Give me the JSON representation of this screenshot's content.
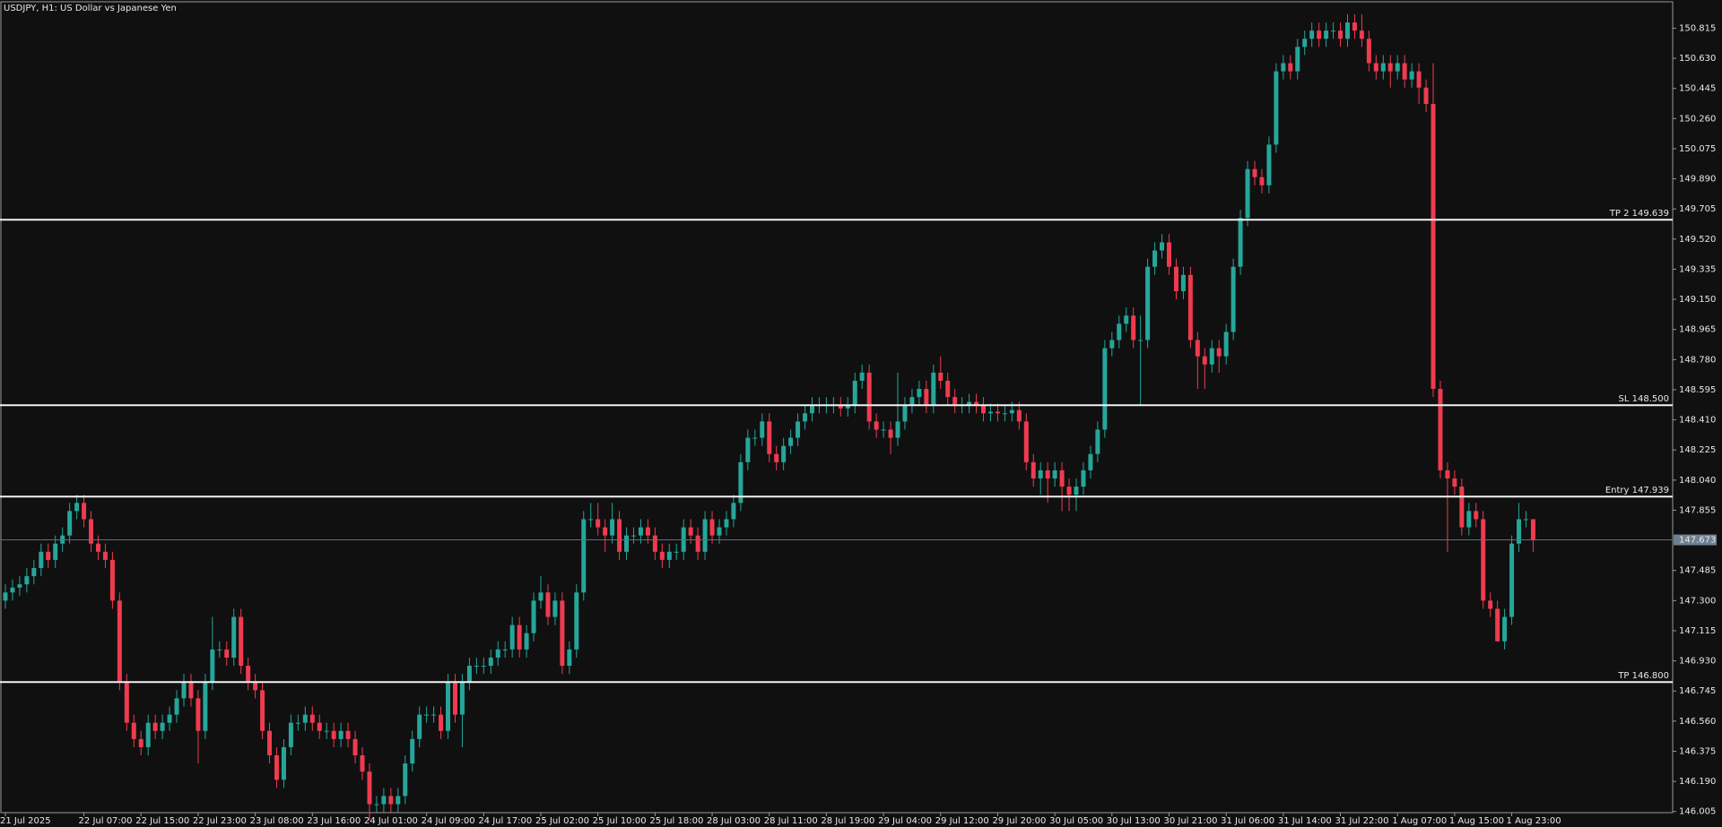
{
  "chart_data": {
    "type": "candlestick",
    "title": "USDJPY, H1:  US Dollar vs Japanese Yen",
    "up_color": "#26a69a",
    "down_color": "#ef3b4f",
    "categories": [
      "21 Jul 2025",
      null,
      null,
      null,
      null,
      null,
      null,
      null,
      null,
      null,
      null,
      "22 Jul 07:00",
      null,
      null,
      null,
      null,
      null,
      null,
      null,
      "22 Jul 15:00",
      null,
      null,
      null,
      null,
      null,
      null,
      null,
      "22 Jul 23:00",
      null,
      null,
      null,
      null,
      null,
      null,
      null,
      "23 Jul 08:00",
      null,
      null,
      null,
      null,
      null,
      null,
      null,
      "23 Jul 16:00",
      null,
      null,
      null,
      null,
      null,
      null,
      null,
      "24 Jul 01:00",
      null,
      null,
      null,
      null,
      null,
      null,
      null,
      "24 Jul 09:00",
      null,
      null,
      null,
      null,
      null,
      null,
      null,
      "24 Jul 17:00",
      null,
      null,
      null,
      null,
      null,
      null,
      null,
      "25 Jul 02:00",
      null,
      null,
      null,
      null,
      null,
      null,
      null,
      "25 Jul 10:00",
      null,
      null,
      null,
      null,
      null,
      null,
      null,
      "25 Jul 18:00",
      null,
      null,
      null,
      null,
      null,
      null,
      null,
      "28 Jul 03:00",
      null,
      null,
      null,
      null,
      null,
      null,
      null,
      "28 Jul 11:00",
      null,
      null,
      null,
      null,
      null,
      null,
      null,
      "28 Jul 19:00",
      null,
      null,
      null,
      null,
      null,
      null,
      null,
      "29 Jul 04:00",
      null,
      null,
      null,
      null,
      null,
      null,
      null,
      "29 Jul 12:00",
      null,
      null,
      null,
      null,
      null,
      null,
      null,
      "29 Jul 20:00",
      null,
      null,
      null,
      null,
      null,
      null,
      null,
      "30 Jul 05:00",
      null,
      null,
      null,
      null,
      null,
      null,
      null,
      "30 Jul 13:00",
      null,
      null,
      null,
      null,
      null,
      null,
      null,
      "30 Jul 21:00",
      null,
      null,
      null,
      null,
      null,
      null,
      null,
      "31 Jul 06:00",
      null,
      null,
      null,
      null,
      null,
      null,
      null,
      "31 Jul 14:00",
      null,
      null,
      null,
      null,
      null,
      null,
      null,
      "31 Jul 22:00",
      null,
      null,
      null,
      null,
      null,
      null,
      null,
      "1 Aug 07:00",
      null,
      null,
      null,
      null,
      null,
      null,
      null,
      "1 Aug 15:00",
      null,
      null,
      null,
      null,
      null,
      null,
      null,
      "1 Aug 23:00",
      null,
      null,
      null
    ],
    "open": [
      147.3,
      147.35,
      147.38,
      147.4,
      147.45,
      147.5,
      147.6,
      147.55,
      147.65,
      147.7,
      147.85,
      147.9,
      147.8,
      147.65,
      147.6,
      147.55,
      147.3,
      146.8,
      146.55,
      146.45,
      146.4,
      146.55,
      146.5,
      146.55,
      146.6,
      146.7,
      146.8,
      146.7,
      146.5,
      146.8,
      147.0,
      147.0,
      146.95,
      147.2,
      146.9,
      146.8,
      146.75,
      146.5,
      146.35,
      146.2,
      146.4,
      146.55,
      146.55,
      146.6,
      146.55,
      146.5,
      146.5,
      146.45,
      146.5,
      146.45,
      146.35,
      146.25,
      146.05,
      146.05,
      146.1,
      146.05,
      146.1,
      146.3,
      146.45,
      146.6,
      146.6,
      146.6,
      146.5,
      146.8,
      146.6,
      146.8,
      146.9,
      146.9,
      146.9,
      146.95,
      147.0,
      147.0,
      147.15,
      147.0,
      147.1,
      147.3,
      147.35,
      147.2,
      147.3,
      146.9,
      147.0,
      147.35,
      147.8,
      147.8,
      147.75,
      147.7,
      147.8,
      147.6,
      147.7,
      147.7,
      147.75,
      147.7,
      147.6,
      147.55,
      147.6,
      147.6,
      147.75,
      147.7,
      147.6,
      147.8,
      147.7,
      147.75,
      147.8,
      147.9,
      148.15,
      148.3,
      148.3,
      148.4,
      148.2,
      148.15,
      148.25,
      148.3,
      148.4,
      148.45,
      148.5,
      148.5,
      148.5,
      148.5,
      148.48,
      148.5,
      148.65,
      148.7,
      148.4,
      148.35,
      148.35,
      148.3,
      148.4,
      148.5,
      148.55,
      148.6,
      148.5,
      148.7,
      148.65,
      148.55,
      148.5,
      148.5,
      148.52,
      148.5,
      148.45,
      148.46,
      148.45,
      148.45,
      148.47,
      148.4,
      148.15,
      148.05,
      148.1,
      148.05,
      148.1,
      148.0,
      147.95,
      148.0,
      148.1,
      148.2,
      148.35,
      148.85,
      148.9,
      149.0,
      149.05,
      148.9,
      148.9,
      149.35,
      149.45,
      149.5,
      149.35,
      149.2,
      149.3,
      148.9,
      148.8,
      148.75,
      148.85,
      148.8,
      148.95,
      149.35,
      149.65,
      149.95,
      149.9,
      149.85,
      150.1,
      150.55,
      150.6,
      150.55,
      150.7,
      150.75,
      150.8,
      150.75,
      150.8,
      150.8,
      150.75,
      150.85,
      150.8,
      150.75,
      150.6,
      150.55,
      150.6,
      150.55,
      150.6,
      150.5,
      150.55,
      150.45,
      150.35,
      148.6,
      148.1,
      148.05,
      148.0,
      147.75,
      147.85,
      147.8,
      147.3,
      147.25,
      147.05,
      147.2,
      147.65,
      147.8,
      147.8
    ],
    "high": [
      147.4,
      147.43,
      147.45,
      147.5,
      147.55,
      147.65,
      147.65,
      147.7,
      147.75,
      147.9,
      147.95,
      147.95,
      147.85,
      147.7,
      147.65,
      147.6,
      147.35,
      146.85,
      146.6,
      146.5,
      146.6,
      146.6,
      146.6,
      146.65,
      146.75,
      146.85,
      146.85,
      146.75,
      146.85,
      147.2,
      147.05,
      147.05,
      147.25,
      147.25,
      146.95,
      146.85,
      146.8,
      146.55,
      146.4,
      146.45,
      146.6,
      146.6,
      146.65,
      146.65,
      146.6,
      146.55,
      146.55,
      146.55,
      146.55,
      146.5,
      146.4,
      146.3,
      146.1,
      146.15,
      146.15,
      146.15,
      146.35,
      146.5,
      146.65,
      146.65,
      146.65,
      146.65,
      146.85,
      146.85,
      146.85,
      146.95,
      146.95,
      146.95,
      147.0,
      147.05,
      147.05,
      147.2,
      147.2,
      147.15,
      147.35,
      147.45,
      147.4,
      147.35,
      147.35,
      147.05,
      147.4,
      147.85,
      147.9,
      147.9,
      147.8,
      147.9,
      147.85,
      147.75,
      147.75,
      147.8,
      147.8,
      147.75,
      147.65,
      147.65,
      147.65,
      147.8,
      147.8,
      147.75,
      147.85,
      147.85,
      147.8,
      147.85,
      147.95,
      148.2,
      148.35,
      148.35,
      148.45,
      148.45,
      148.25,
      148.3,
      148.35,
      148.45,
      148.5,
      148.55,
      148.55,
      148.55,
      148.55,
      148.55,
      148.55,
      148.7,
      148.75,
      148.75,
      148.45,
      148.4,
      148.4,
      148.7,
      148.55,
      148.6,
      148.65,
      148.65,
      148.75,
      148.8,
      148.7,
      148.6,
      148.55,
      148.57,
      148.57,
      148.55,
      148.51,
      148.51,
      148.5,
      148.52,
      148.52,
      148.45,
      148.2,
      148.15,
      148.15,
      148.15,
      148.15,
      148.05,
      148.05,
      148.15,
      148.25,
      148.4,
      148.9,
      148.95,
      149.05,
      149.1,
      149.1,
      149.05,
      149.4,
      149.5,
      149.55,
      149.55,
      149.4,
      149.35,
      149.35,
      148.95,
      148.85,
      148.9,
      148.9,
      149.0,
      149.4,
      149.7,
      150.0,
      150.0,
      149.95,
      150.15,
      150.6,
      150.65,
      150.65,
      150.75,
      150.8,
      150.85,
      150.85,
      150.85,
      150.85,
      150.85,
      150.9,
      150.9,
      150.9,
      150.8,
      150.65,
      150.65,
      150.65,
      150.65,
      150.65,
      150.6,
      150.6,
      150.5,
      150.6,
      148.65,
      148.15,
      148.1,
      148.05,
      147.9,
      147.9,
      147.85,
      147.35,
      147.3,
      147.25,
      147.7,
      147.9,
      147.85,
      147.8
    ],
    "low": [
      147.25,
      147.3,
      147.33,
      147.35,
      147.4,
      147.45,
      147.5,
      147.5,
      147.6,
      147.65,
      147.8,
      147.75,
      147.6,
      147.55,
      147.5,
      147.25,
      146.75,
      146.5,
      146.4,
      146.35,
      146.35,
      146.45,
      146.45,
      146.5,
      146.55,
      146.65,
      146.65,
      146.3,
      146.45,
      146.75,
      146.95,
      146.9,
      146.9,
      146.85,
      146.75,
      146.7,
      146.45,
      146.3,
      146.15,
      146.15,
      146.35,
      146.5,
      146.5,
      146.5,
      146.45,
      146.45,
      146.4,
      146.4,
      146.4,
      146.3,
      146.2,
      145.95,
      146.0,
      146.0,
      146.0,
      146.0,
      146.05,
      146.25,
      146.4,
      146.55,
      146.55,
      146.45,
      146.45,
      146.55,
      146.4,
      146.75,
      146.85,
      146.85,
      146.85,
      146.9,
      146.95,
      146.95,
      146.95,
      146.95,
      147.05,
      147.25,
      147.15,
      147.15,
      146.85,
      146.85,
      146.95,
      147.3,
      147.75,
      147.7,
      147.6,
      147.65,
      147.55,
      147.55,
      147.65,
      147.65,
      147.65,
      147.55,
      147.5,
      147.5,
      147.55,
      147.55,
      147.65,
      147.55,
      147.55,
      147.65,
      147.65,
      147.7,
      147.75,
      147.85,
      148.1,
      148.25,
      148.25,
      148.15,
      148.1,
      148.1,
      148.2,
      148.25,
      148.35,
      148.4,
      148.45,
      148.45,
      148.45,
      148.43,
      148.43,
      148.45,
      148.6,
      148.35,
      148.3,
      148.3,
      148.2,
      148.25,
      148.35,
      148.45,
      148.5,
      148.45,
      148.45,
      148.6,
      148.5,
      148.45,
      148.45,
      148.45,
      148.45,
      148.4,
      148.4,
      148.4,
      148.4,
      148.4,
      148.35,
      148.1,
      148.0,
      147.95,
      147.9,
      148.0,
      147.85,
      147.85,
      147.85,
      147.95,
      148.05,
      148.15,
      148.3,
      148.8,
      148.85,
      148.95,
      148.85,
      148.5,
      148.85,
      149.3,
      149.4,
      149.3,
      149.15,
      149.15,
      148.85,
      148.6,
      148.6,
      148.7,
      148.7,
      148.75,
      148.9,
      149.3,
      149.6,
      149.85,
      149.8,
      149.8,
      150.05,
      150.5,
      150.5,
      150.5,
      150.65,
      150.7,
      150.7,
      150.7,
      150.75,
      150.7,
      150.7,
      150.75,
      150.7,
      150.55,
      150.5,
      150.5,
      150.45,
      150.5,
      150.45,
      150.45,
      150.35,
      150.3,
      148.55,
      148.05,
      147.6,
      147.95,
      147.7,
      147.7,
      147.75,
      147.25,
      147.2,
      147.05,
      147.0,
      147.15,
      147.6,
      147.75,
      147.6
    ],
    "close": [
      147.35,
      147.38,
      147.4,
      147.45,
      147.5,
      147.6,
      147.55,
      147.65,
      147.7,
      147.85,
      147.9,
      147.8,
      147.65,
      147.6,
      147.55,
      147.3,
      146.8,
      146.55,
      146.45,
      146.4,
      146.55,
      146.5,
      146.55,
      146.6,
      146.7,
      146.8,
      146.7,
      146.5,
      146.8,
      147.0,
      147.0,
      146.95,
      147.2,
      146.9,
      146.8,
      146.75,
      146.5,
      146.35,
      146.2,
      146.4,
      146.55,
      146.55,
      146.6,
      146.55,
      146.5,
      146.5,
      146.45,
      146.5,
      146.45,
      146.35,
      146.25,
      146.05,
      146.05,
      146.1,
      146.05,
      146.1,
      146.3,
      146.45,
      146.6,
      146.6,
      146.6,
      146.5,
      146.8,
      146.6,
      146.8,
      146.9,
      146.9,
      146.9,
      146.95,
      147.0,
      147.0,
      147.15,
      147.0,
      147.1,
      147.3,
      147.35,
      147.2,
      147.3,
      146.9,
      147.0,
      147.35,
      147.8,
      147.8,
      147.75,
      147.7,
      147.8,
      147.6,
      147.7,
      147.7,
      147.75,
      147.7,
      147.6,
      147.55,
      147.6,
      147.6,
      147.75,
      147.7,
      147.6,
      147.8,
      147.7,
      147.75,
      147.8,
      147.9,
      148.15,
      148.3,
      148.3,
      148.4,
      148.2,
      148.15,
      148.25,
      148.3,
      148.4,
      148.45,
      148.5,
      148.5,
      148.5,
      148.5,
      148.48,
      148.5,
      148.65,
      148.7,
      148.4,
      148.35,
      148.35,
      148.3,
      148.4,
      148.5,
      148.55,
      148.6,
      148.5,
      148.7,
      148.65,
      148.55,
      148.5,
      148.5,
      148.52,
      148.5,
      148.45,
      148.46,
      148.45,
      148.45,
      148.47,
      148.4,
      148.15,
      148.05,
      148.1,
      148.05,
      148.1,
      148.0,
      147.95,
      148.0,
      148.1,
      148.2,
      148.35,
      148.85,
      148.9,
      149.0,
      149.05,
      148.9,
      148.9,
      149.35,
      149.45,
      149.5,
      149.35,
      149.2,
      149.3,
      148.9,
      148.8,
      148.75,
      148.85,
      148.8,
      148.95,
      149.35,
      149.65,
      149.95,
      149.9,
      149.85,
      150.1,
      150.55,
      150.6,
      150.55,
      150.7,
      150.75,
      150.8,
      150.75,
      150.8,
      150.8,
      150.75,
      150.85,
      150.8,
      150.75,
      150.6,
      150.55,
      150.6,
      150.55,
      150.6,
      150.5,
      150.55,
      150.45,
      150.35,
      148.6,
      148.1,
      148.05,
      148.0,
      147.75,
      147.85,
      147.8,
      147.3,
      147.25,
      147.05,
      147.2,
      147.65,
      147.8,
      147.8,
      147.67
    ],
    "ylim": [
      145.998,
      150.977
    ],
    "yticks": [
      146.005,
      {
        "value": 146.19,
        "label": "146.190"
      },
      146.375,
      {
        "value": 146.56,
        "label": "146.560"
      },
      146.745,
      {
        "value": 146.93,
        "label": "146.930"
      },
      147.115,
      {
        "value": 147.3,
        "label": "147.300"
      },
      147.485,
      147.855,
      {
        "value": 148.04,
        "label": "148.040"
      },
      148.225,
      {
        "value": 148.41,
        "label": "148.410"
      },
      148.595,
      {
        "value": 148.78,
        "label": "148.780"
      },
      148.965,
      {
        "value": 149.15,
        "label": "149.150"
      },
      149.335,
      {
        "value": 149.52,
        "label": "149.520"
      },
      149.705,
      {
        "value": 149.89,
        "label": "149.890"
      },
      150.075,
      {
        "value": 150.26,
        "label": "150.260"
      },
      150.445,
      {
        "value": 150.63,
        "label": "150.630"
      },
      150.815
    ],
    "levels": [
      {
        "label": "TP 2 149.639",
        "value": 149.639
      },
      {
        "label": "SL 148.500",
        "value": 148.5
      },
      {
        "label": "Entry 147.939",
        "value": 147.939
      },
      {
        "label": "TP 146.800",
        "value": 146.8
      }
    ],
    "current_price": {
      "label": "147.673",
      "value": 147.673
    }
  }
}
